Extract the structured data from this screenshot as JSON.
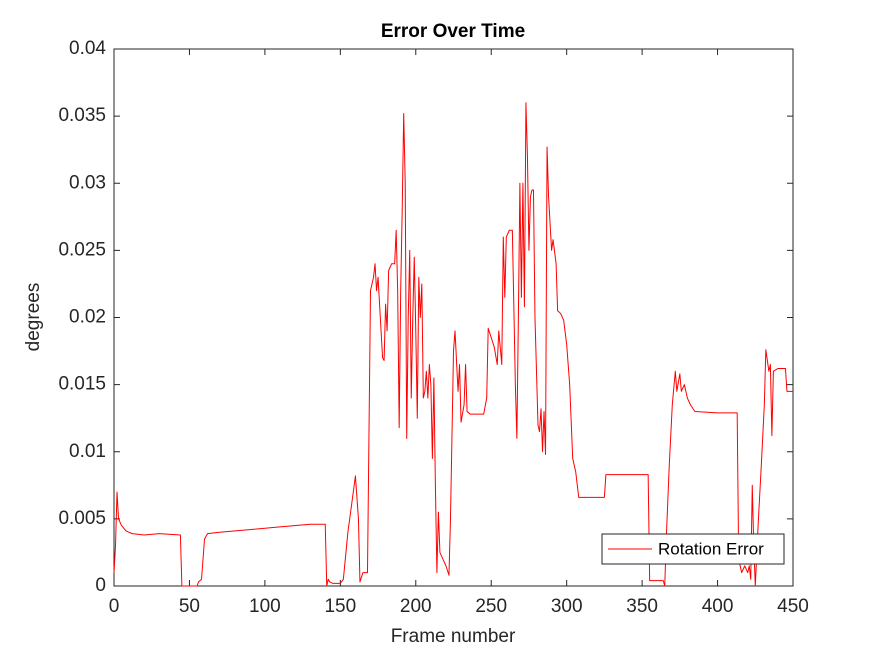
{
  "chart_data": {
    "type": "line",
    "title": "Error Over Time",
    "xlabel": "Frame number",
    "ylabel": "degrees",
    "x": [
      0,
      1,
      2,
      3,
      5,
      8,
      12,
      20,
      30,
      44,
      45,
      55,
      56,
      58,
      60,
      62,
      70,
      90,
      110,
      130,
      140,
      141,
      142,
      143,
      145,
      150,
      152,
      155,
      158,
      160,
      162,
      163,
      165,
      168,
      170,
      172,
      173,
      174,
      175,
      177,
      178,
      179,
      180,
      181,
      182,
      184,
      186,
      187,
      188,
      189,
      190,
      191,
      192,
      193,
      194,
      195,
      196,
      197,
      198,
      199,
      200,
      201,
      202,
      203,
      204,
      205,
      206,
      207,
      208,
      209,
      210,
      211,
      212,
      213,
      214,
      215,
      216,
      218,
      220,
      222,
      223,
      225,
      226,
      228,
      229,
      230,
      232,
      233,
      234,
      236,
      245,
      247,
      248,
      252,
      254,
      255,
      257,
      258,
      259,
      260,
      262,
      264,
      266,
      267,
      268,
      269,
      270,
      271,
      272,
      273,
      274,
      275,
      276,
      277,
      278,
      279,
      281,
      282,
      283,
      284,
      285,
      286,
      287,
      288,
      290,
      291,
      293,
      294,
      296,
      298,
      300,
      302,
      304,
      306,
      308,
      325,
      326,
      354,
      355,
      364,
      365,
      366,
      368,
      370,
      372,
      373,
      375,
      376,
      378,
      380,
      382,
      385,
      400,
      413,
      414,
      416,
      418,
      420,
      421,
      422,
      423,
      424,
      425,
      427,
      429,
      431,
      432,
      434,
      435,
      436,
      437,
      440,
      445,
      446,
      450
    ],
    "series": [
      {
        "name": "Rotation Error",
        "color": "#ff0000",
        "values": [
          0.001,
          0.003,
          0.007,
          0.005,
          0.0045,
          0.0041,
          0.0039,
          0.0038,
          0.0039,
          0.0038,
          0.0,
          0.0,
          0.0003,
          0.0005,
          0.0035,
          0.0039,
          0.004,
          0.0042,
          0.0044,
          0.0046,
          0.0046,
          0.0,
          0.0005,
          0.0003,
          0.0002,
          0.0002,
          0.0005,
          0.004,
          0.0065,
          0.0082,
          0.005,
          0.0003,
          0.001,
          0.001,
          0.022,
          0.023,
          0.024,
          0.022,
          0.023,
          0.019,
          0.017,
          0.0168,
          0.021,
          0.019,
          0.0235,
          0.024,
          0.024,
          0.0265,
          0.022,
          0.0118,
          0.022,
          0.028,
          0.0352,
          0.03,
          0.011,
          0.02,
          0.025,
          0.014,
          0.02,
          0.0245,
          0.019,
          0.0125,
          0.023,
          0.02,
          0.0225,
          0.014,
          0.0145,
          0.016,
          0.014,
          0.0165,
          0.015,
          0.0095,
          0.0155,
          0.0075,
          0.001,
          0.0055,
          0.0025,
          0.002,
          0.0015,
          0.0008,
          0.005,
          0.0175,
          0.019,
          0.0145,
          0.0165,
          0.0122,
          0.0135,
          0.0165,
          0.013,
          0.0128,
          0.0128,
          0.014,
          0.0192,
          0.0178,
          0.0165,
          0.019,
          0.0165,
          0.026,
          0.0215,
          0.026,
          0.0265,
          0.0265,
          0.015,
          0.011,
          0.02,
          0.03,
          0.0215,
          0.03,
          0.0208,
          0.036,
          0.032,
          0.025,
          0.029,
          0.0295,
          0.0295,
          0.02,
          0.012,
          0.0115,
          0.0132,
          0.01,
          0.013,
          0.0098,
          0.0327,
          0.029,
          0.025,
          0.0258,
          0.024,
          0.0205,
          0.0203,
          0.0198,
          0.018,
          0.015,
          0.0095,
          0.0085,
          0.0066,
          0.0066,
          0.0083,
          0.0083,
          0.0004,
          0.0004,
          0.0,
          0.0035,
          0.009,
          0.0135,
          0.016,
          0.0145,
          0.0158,
          0.0145,
          0.015,
          0.014,
          0.0135,
          0.013,
          0.0129,
          0.0129,
          0.002,
          0.001,
          0.0015,
          0.001,
          0.0015,
          0.0005,
          0.0075,
          0.003,
          0.0,
          0.0048,
          0.009,
          0.0135,
          0.0176,
          0.016,
          0.0165,
          0.0112,
          0.016,
          0.0162,
          0.0162,
          0.0145,
          0.0145
        ]
      }
    ],
    "xlim": [
      0,
      450
    ],
    "xticks": [
      0,
      50,
      100,
      150,
      200,
      250,
      300,
      350,
      400,
      450
    ],
    "ylim": [
      0,
      0.04
    ],
    "yticks": [
      0,
      0.005,
      0.01,
      0.015,
      0.02,
      0.025,
      0.03,
      0.035,
      0.04
    ],
    "legend": "lower right"
  }
}
